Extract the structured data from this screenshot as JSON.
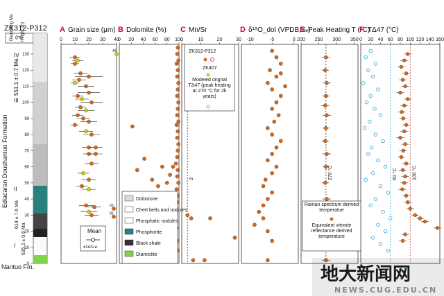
{
  "chart_data": [
    {
      "type": "scatter",
      "panel": "A",
      "title": "Grain size (μm)",
      "x_ticks": [
        0,
        10,
        20,
        30,
        40
      ],
      "xlim": [
        0,
        40
      ],
      "ylim": [
        0,
        136
      ],
      "points": [
        {
          "x": 40,
          "y": 130,
          "label": "49",
          "color": "#c8d400"
        },
        {
          "x": 10,
          "y": 128,
          "err": 4,
          "color": "#d2691e"
        },
        {
          "x": 12,
          "y": 126,
          "err": 4,
          "color": "#c8d400"
        },
        {
          "x": 10,
          "y": 124,
          "err": 3,
          "color": "#d2691e"
        },
        {
          "x": 14,
          "y": 118,
          "err": 5,
          "color": "#d2691e"
        },
        {
          "x": 20,
          "y": 116,
          "err": 10,
          "color": "#d2691e"
        },
        {
          "x": 13,
          "y": 114,
          "err": 5,
          "color": "#d2691e"
        },
        {
          "x": 10,
          "y": 112,
          "err": 3,
          "color": "#c8d400"
        },
        {
          "x": 18,
          "y": 110,
          "err": 6,
          "color": "#d2691e"
        },
        {
          "x": 20,
          "y": 106,
          "err": 8,
          "color": "#d2691e"
        },
        {
          "x": 12,
          "y": 104,
          "err": 4,
          "color": "#d2691e"
        },
        {
          "x": 15,
          "y": 102,
          "err": 5,
          "color": "#c8d400"
        },
        {
          "x": 22,
          "y": 100,
          "err": 8,
          "color": "#d2691e"
        },
        {
          "x": 14,
          "y": 97,
          "err": 4,
          "color": "#d2691e"
        },
        {
          "x": 18,
          "y": 95,
          "err": 6,
          "color": "#c8d400"
        },
        {
          "x": 12,
          "y": 92,
          "err": 4,
          "color": "#d2691e"
        },
        {
          "x": 16,
          "y": 90,
          "err": 5,
          "color": "#d2691e"
        },
        {
          "x": 20,
          "y": 88,
          "err": 6,
          "color": "#d2691e"
        },
        {
          "x": 10,
          "y": 86,
          "err": 3,
          "color": "#d2691e"
        },
        {
          "x": 18,
          "y": 82,
          "err": 5,
          "color": "#c8d400"
        },
        {
          "x": 22,
          "y": 80,
          "err": 6,
          "color": "#d2691e"
        },
        {
          "x": 20,
          "y": 72,
          "err": 5,
          "color": "#d2691e"
        },
        {
          "x": 25,
          "y": 72,
          "err": 5,
          "color": "#d2691e"
        },
        {
          "x": 20,
          "y": 68,
          "err": 4,
          "color": "#d2691e"
        },
        {
          "x": 25,
          "y": 68,
          "err": 5,
          "color": "#d2691e"
        },
        {
          "x": 22,
          "y": 62,
          "err": 5,
          "color": "#d2691e"
        },
        {
          "x": 16,
          "y": 56,
          "err": 4,
          "color": "#c8d400"
        },
        {
          "x": 20,
          "y": 52,
          "err": 5,
          "color": "#d2691e"
        },
        {
          "x": 15,
          "y": 48,
          "err": 4,
          "color": "#d2691e"
        },
        {
          "x": 20,
          "y": 46,
          "err": 5,
          "color": "#c8d400"
        },
        {
          "x": 18,
          "y": 36,
          "err": 5,
          "color": "#d2691e"
        },
        {
          "x": 24,
          "y": 35,
          "err": 5,
          "color": "#d2691e"
        },
        {
          "x": 20,
          "y": 32,
          "err": 6,
          "color": "#c8d400"
        },
        {
          "x": 22,
          "y": 30,
          "err": 5,
          "color": "#d2691e"
        },
        {
          "x": 38,
          "y": 34,
          "label": "60",
          "color": "#d2691e"
        },
        {
          "x": 38,
          "y": 29,
          "label": "86",
          "color": "#d2691e"
        }
      ]
    },
    {
      "type": "scatter",
      "panel": "B",
      "title": "Dolomite (%)",
      "x_ticks": [
        0,
        20,
        40,
        60,
        80,
        100
      ],
      "xlim": [
        0,
        100
      ],
      "ylim": [
        0,
        136
      ],
      "points": [
        {
          "x": 98,
          "y": 134
        },
        {
          "x": 97,
          "y": 130
        },
        {
          "x": 99,
          "y": 126
        },
        {
          "x": 96,
          "y": 124
        },
        {
          "x": 98,
          "y": 120
        },
        {
          "x": 97,
          "y": 116
        },
        {
          "x": 99,
          "y": 112
        },
        {
          "x": 98,
          "y": 108
        },
        {
          "x": 97,
          "y": 104
        },
        {
          "x": 99,
          "y": 100
        },
        {
          "x": 98,
          "y": 96
        },
        {
          "x": 97,
          "y": 92
        },
        {
          "x": 99,
          "y": 88
        },
        {
          "x": 96,
          "y": 86
        },
        {
          "x": 98,
          "y": 82
        },
        {
          "x": 97,
          "y": 78
        },
        {
          "x": 99,
          "y": 74
        },
        {
          "x": 98,
          "y": 70
        },
        {
          "x": 97,
          "y": 66
        },
        {
          "x": 95,
          "y": 62
        },
        {
          "x": 98,
          "y": 58
        },
        {
          "x": 97,
          "y": 54
        },
        {
          "x": 99,
          "y": 50
        },
        {
          "x": 96,
          "y": 46
        },
        {
          "x": 98,
          "y": 42
        },
        {
          "x": 97,
          "y": 38
        },
        {
          "x": 90,
          "y": 60
        },
        {
          "x": 85,
          "y": 55
        },
        {
          "x": 80,
          "y": 50
        },
        {
          "x": 72,
          "y": 60
        },
        {
          "x": 65,
          "y": 48
        },
        {
          "x": 55,
          "y": 52
        },
        {
          "x": 42,
          "y": 65
        },
        {
          "x": 30,
          "y": 58
        },
        {
          "x": 22,
          "y": 85
        },
        {
          "x": 20,
          "y": 40
        },
        {
          "x": 18,
          "y": 18
        },
        {
          "x": 25,
          "y": 5
        },
        {
          "x": 94,
          "y": 30
        },
        {
          "x": 96,
          "y": 22
        },
        {
          "x": 97,
          "y": 14
        },
        {
          "x": 98,
          "y": 8
        }
      ],
      "legend": [
        {
          "name": "Dolostone",
          "swatch": "brick"
        },
        {
          "name": "Chert belts and nodules",
          "swatch": "chert"
        },
        {
          "name": "Phosphatic nodules",
          "swatch": "phos-nod"
        },
        {
          "name": "Phosphorite",
          "swatch": "phosphorite"
        },
        {
          "name": "Black shale",
          "swatch": "shale"
        },
        {
          "name": "Diamictite",
          "swatch": "diamictite"
        }
      ]
    },
    {
      "type": "scatter",
      "panel": "C",
      "title": "Mn/Sr",
      "x_ticks": [
        0,
        10,
        20,
        30
      ],
      "xlim": [
        0,
        30
      ],
      "ylim": [
        0,
        136
      ],
      "ref_line": {
        "x": 3,
        "label": "3"
      },
      "legend_title": "ZK312-P312",
      "legend_sub": "ZK407",
      "legend_note": "Modeled orignal TΔ47 (peak heating at 270 °C for 2k years)",
      "points": [
        {
          "x": 3,
          "y": 30
        },
        {
          "x": 5,
          "y": 28
        },
        {
          "x": 15,
          "y": 28
        },
        {
          "x": 28,
          "y": 16
        },
        {
          "x": 6,
          "y": 2
        },
        {
          "x": 12,
          "y": 2
        }
      ]
    },
    {
      "type": "scatter",
      "panel": "D",
      "title": "δ¹⁸O_dol (VPDB,‰)",
      "x_ticks": [
        -10,
        -5,
        0
      ],
      "xlim": [
        -12,
        1
      ],
      "ylim": [
        0,
        136
      ],
      "points": [
        {
          "x": -5,
          "y": 132
        },
        {
          "x": -4,
          "y": 128
        },
        {
          "x": -3,
          "y": 124
        },
        {
          "x": -5.5,
          "y": 120
        },
        {
          "x": -4,
          "y": 116
        },
        {
          "x": -6,
          "y": 112
        },
        {
          "x": -5,
          "y": 108
        },
        {
          "x": -3,
          "y": 104
        },
        {
          "x": -4,
          "y": 100
        },
        {
          "x": -5,
          "y": 96
        },
        {
          "x": -3.5,
          "y": 92
        },
        {
          "x": -4.5,
          "y": 88
        },
        {
          "x": -6,
          "y": 84
        },
        {
          "x": -5,
          "y": 80
        },
        {
          "x": -3,
          "y": 76
        },
        {
          "x": -4,
          "y": 72
        },
        {
          "x": -5,
          "y": 68
        },
        {
          "x": -6,
          "y": 64
        },
        {
          "x": -4,
          "y": 60
        },
        {
          "x": -5,
          "y": 56
        },
        {
          "x": -6.5,
          "y": 52
        },
        {
          "x": -7,
          "y": 48
        },
        {
          "x": -5,
          "y": 44
        },
        {
          "x": -6,
          "y": 40
        },
        {
          "x": -7,
          "y": 36
        },
        {
          "x": -8,
          "y": 32
        },
        {
          "x": -7,
          "y": 28
        },
        {
          "x": -9,
          "y": 24
        },
        {
          "x": -6,
          "y": 20
        },
        {
          "x": -5,
          "y": 14
        },
        {
          "x": -3,
          "y": 118
        },
        {
          "x": -2,
          "y": 110
        },
        {
          "x": -6,
          "y": 2
        }
      ]
    },
    {
      "type": "scatter",
      "panel": "E",
      "title": "Peak Heating T (°C)",
      "x_ticks": [
        200,
        250,
        300,
        350
      ],
      "xlim": [
        200,
        360
      ],
      "ylim": [
        0,
        136
      ],
      "ref_line": {
        "x": 270,
        "label": "270 °C"
      },
      "legend": [
        {
          "name": "Raman spectrum derived temperatue"
        },
        {
          "name": "Equivalent vitrinite reflectance derived temperature"
        }
      ],
      "points": [
        {
          "x": 270,
          "y": 128,
          "err": 12
        },
        {
          "x": 268,
          "y": 120,
          "err": 10
        },
        {
          "x": 272,
          "y": 112,
          "err": 12
        },
        {
          "x": 270,
          "y": 104,
          "err": 10
        },
        {
          "x": 268,
          "y": 98,
          "err": 12
        },
        {
          "x": 272,
          "y": 92,
          "err": 12
        },
        {
          "x": 270,
          "y": 84,
          "err": 10
        },
        {
          "x": 268,
          "y": 76,
          "err": 10
        },
        {
          "x": 272,
          "y": 68,
          "err": 12
        },
        {
          "x": 270,
          "y": 60,
          "err": 10
        },
        {
          "x": 268,
          "y": 50,
          "err": 10
        },
        {
          "x": 272,
          "y": 40,
          "err": 12
        },
        {
          "x": 270,
          "y": 32,
          "err": 10
        },
        {
          "x": 268,
          "y": 24,
          "err": 10
        },
        {
          "x": 272,
          "y": 14,
          "err": 10
        },
        {
          "x": 270,
          "y": 2,
          "err": 12
        }
      ]
    },
    {
      "type": "scatter",
      "panel": "F",
      "title": "TΔ47 (°C)",
      "x_ticks": [
        0,
        20,
        40,
        60,
        80,
        100,
        120,
        140,
        160
      ],
      "xlim": [
        0,
        160
      ],
      "ylim": [
        0,
        136
      ],
      "ref_lines": [
        {
          "x": 60,
          "label": "60 °C",
          "color": "#29a3d6"
        },
        {
          "x": 100,
          "label": "100 °C",
          "color": "#d62828"
        }
      ],
      "measured": [
        {
          "x": 95,
          "y": 130
        },
        {
          "x": 88,
          "y": 126
        },
        {
          "x": 82,
          "y": 122
        },
        {
          "x": 92,
          "y": 118
        },
        {
          "x": 85,
          "y": 114
        },
        {
          "x": 90,
          "y": 110
        },
        {
          "x": 80,
          "y": 106
        },
        {
          "x": 95,
          "y": 102
        },
        {
          "x": 88,
          "y": 98
        },
        {
          "x": 83,
          "y": 94
        },
        {
          "x": 86,
          "y": 90
        },
        {
          "x": 92,
          "y": 86
        },
        {
          "x": 88,
          "y": 82
        },
        {
          "x": 80,
          "y": 78
        },
        {
          "x": 90,
          "y": 74
        },
        {
          "x": 86,
          "y": 70
        },
        {
          "x": 82,
          "y": 66
        },
        {
          "x": 92,
          "y": 62
        },
        {
          "x": 85,
          "y": 58
        },
        {
          "x": 90,
          "y": 54
        },
        {
          "x": 88,
          "y": 50
        },
        {
          "x": 84,
          "y": 46
        },
        {
          "x": 92,
          "y": 42
        },
        {
          "x": 95,
          "y": 38
        },
        {
          "x": 100,
          "y": 34
        },
        {
          "x": 110,
          "y": 30
        },
        {
          "x": 120,
          "y": 28
        },
        {
          "x": 130,
          "y": 26
        },
        {
          "x": 155,
          "y": 22
        },
        {
          "x": 90,
          "y": 18
        },
        {
          "x": 85,
          "y": 14
        }
      ],
      "modeled": [
        {
          "x": 20,
          "y": 132
        },
        {
          "x": 10,
          "y": 128
        },
        {
          "x": 30,
          "y": 124
        },
        {
          "x": 15,
          "y": 120
        },
        {
          "x": 25,
          "y": 116
        },
        {
          "x": 5,
          "y": 112
        },
        {
          "x": 35,
          "y": 108
        },
        {
          "x": 20,
          "y": 104
        },
        {
          "x": 12,
          "y": 100
        },
        {
          "x": 28,
          "y": 96
        },
        {
          "x": 40,
          "y": 92
        },
        {
          "x": 18,
          "y": 88
        },
        {
          "x": 8,
          "y": 84
        },
        {
          "x": 30,
          "y": 80
        },
        {
          "x": 45,
          "y": 76
        },
        {
          "x": 22,
          "y": 72
        },
        {
          "x": 15,
          "y": 68
        },
        {
          "x": 35,
          "y": 64
        },
        {
          "x": 50,
          "y": 60
        },
        {
          "x": 25,
          "y": 56
        },
        {
          "x": 10,
          "y": 52
        },
        {
          "x": 40,
          "y": 48
        },
        {
          "x": 55,
          "y": 44
        },
        {
          "x": 30,
          "y": 40
        },
        {
          "x": 20,
          "y": 36
        },
        {
          "x": 45,
          "y": 32
        },
        {
          "x": 60,
          "y": 28
        },
        {
          "x": 35,
          "y": 24
        },
        {
          "x": 50,
          "y": 20
        },
        {
          "x": 25,
          "y": 16
        },
        {
          "x": 40,
          "y": 12
        },
        {
          "x": 55,
          "y": 8
        }
      ]
    }
  ],
  "stratigraphy": {
    "core_title": "ZK312-P312",
    "col_depositing": "Depositing Ma",
    "col_height": "Height (m)",
    "formation": "Ediacaran Doushantuo Formation",
    "lower_formation": "Nantuo Fm.",
    "members": [
      "IV",
      "III",
      "II",
      "I"
    ],
    "height_ticks": [
      0,
      10,
      20,
      30,
      40,
      50,
      60,
      70,
      80,
      90,
      100,
      110,
      120,
      130
    ],
    "ages": [
      "551.1 ± 0.7 Ma",
      "614 ± 7.6 Ma",
      "635.2 ± 0.6 Ma"
    ],
    "mean_box_title": "Mean",
    "mean_box_sub": "±1σ/s.e."
  },
  "panel_letters": [
    "A",
    "B",
    "C",
    "D",
    "E",
    "F"
  ],
  "watermark": {
    "text": "地大新闻网",
    "url": "NEWS.CUG.EDU.CN"
  }
}
